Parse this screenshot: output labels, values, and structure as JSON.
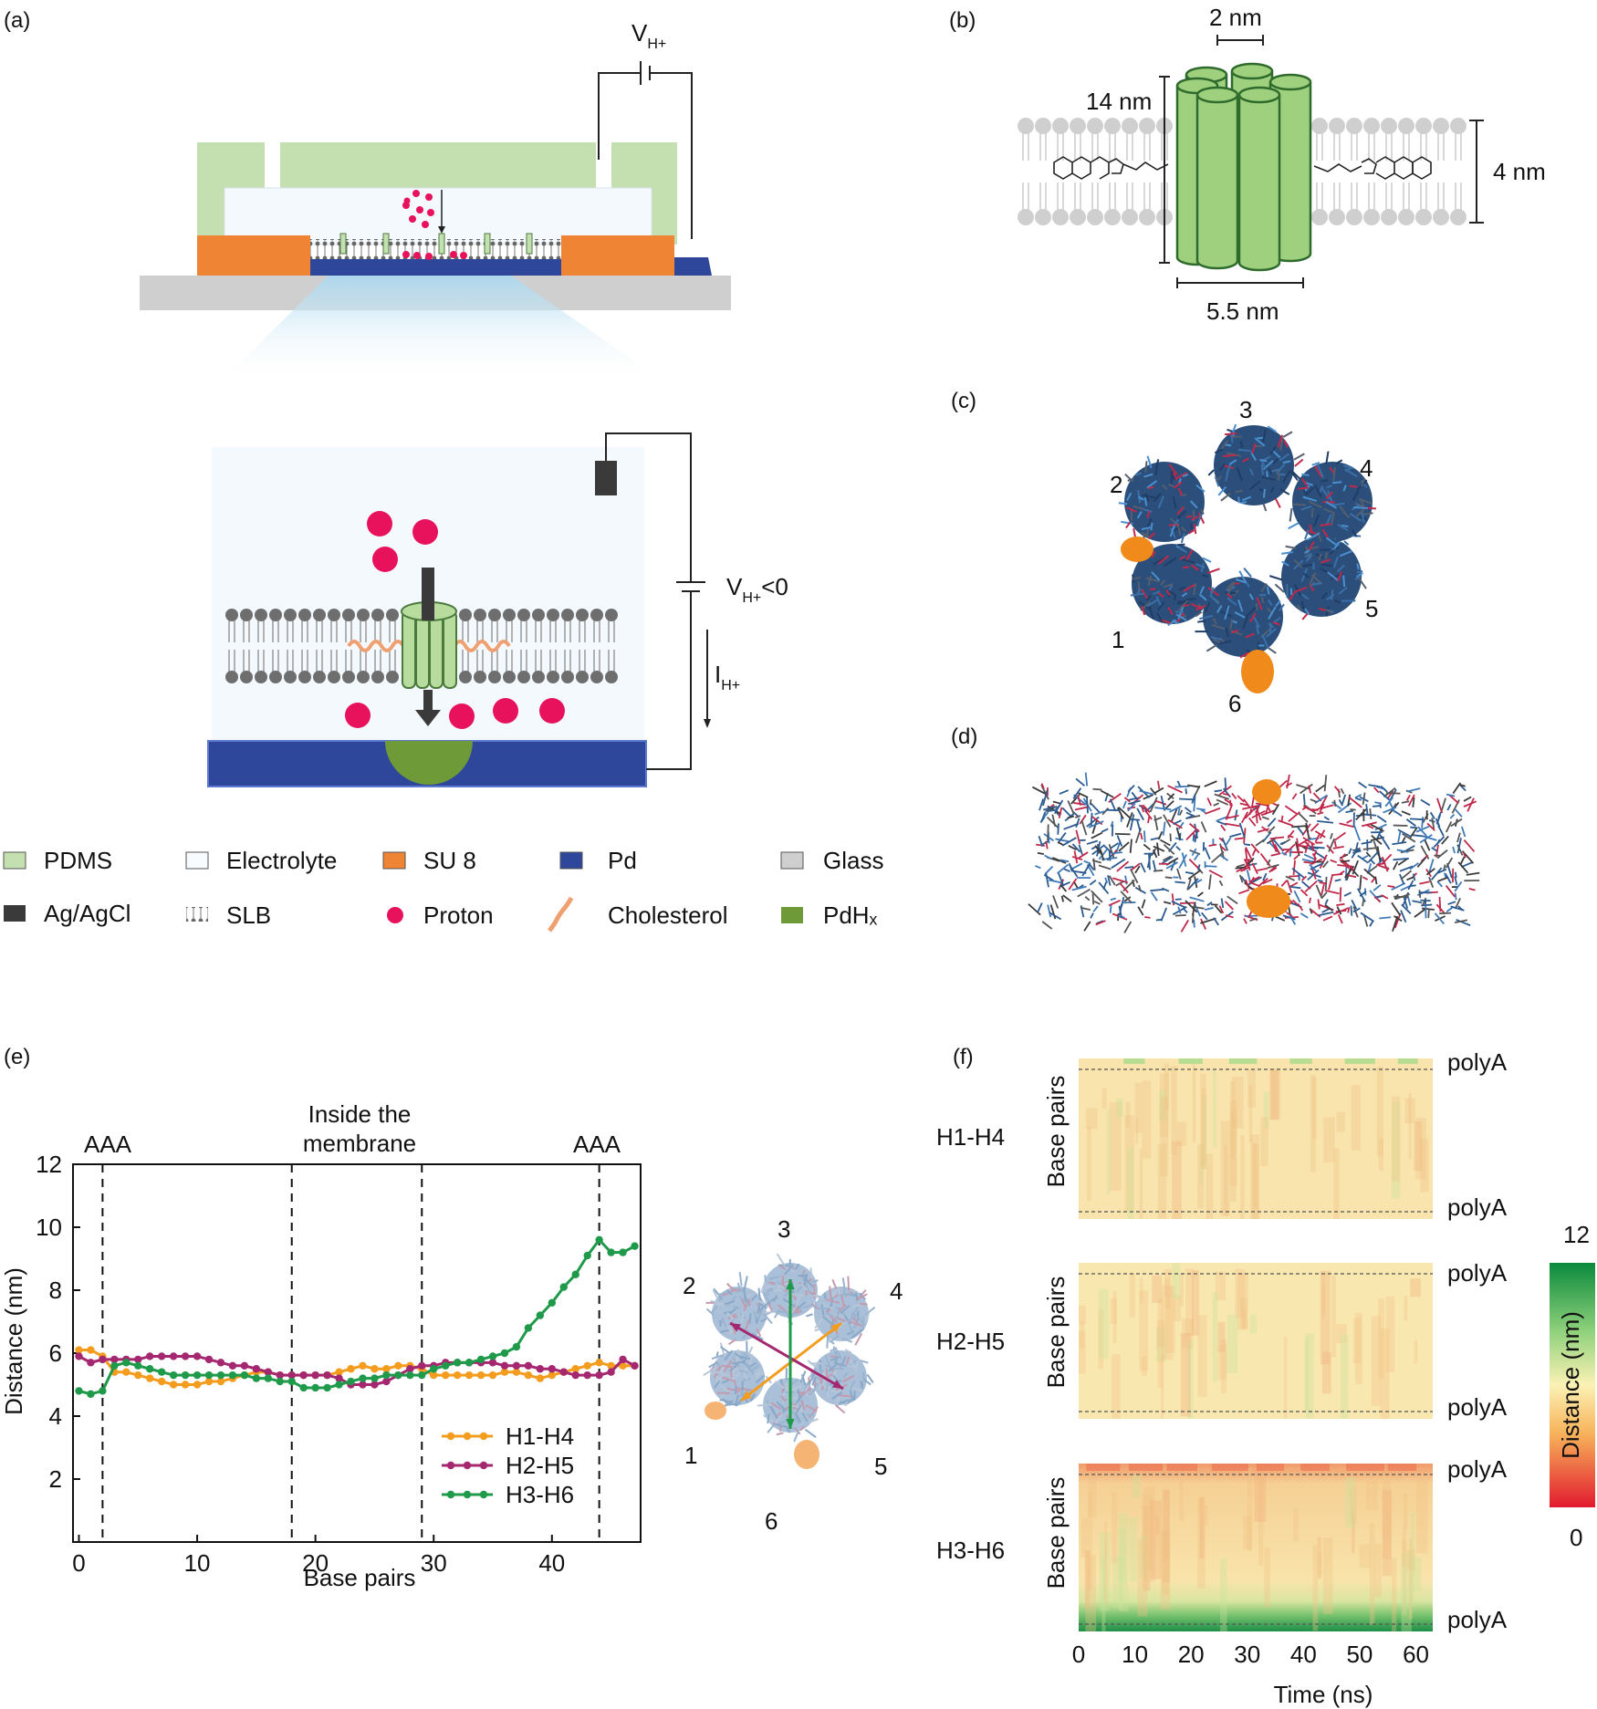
{
  "panels": {
    "a": "(a)",
    "b": "(b)",
    "c": "(c)",
    "d": "(d)",
    "e": "(e)",
    "f": "(f)"
  },
  "panel_a": {
    "voltage_label": "V",
    "voltage_sub": "H+",
    "voltage_neg_label": "V",
    "voltage_neg_sub": "H+",
    "voltage_neg_suffix": "<0",
    "current_label": "I",
    "current_sub": "H+"
  },
  "panel_b": {
    "width_top": "2 nm",
    "height_left": "14 nm",
    "height_right": "4 nm",
    "width_bottom": "5.5 nm"
  },
  "panel_c": {
    "helix_labels": [
      "1",
      "2",
      "3",
      "4",
      "5",
      "6"
    ]
  },
  "legend": {
    "items": [
      {
        "label": "PDMS",
        "color": "#c5e0b0"
      },
      {
        "label": "Electrolyte",
        "color": "#f7fbfe"
      },
      {
        "label": "SU 8",
        "color": "#ee8434"
      },
      {
        "label": "Pd",
        "color": "#2f479b"
      },
      {
        "label": "Glass",
        "color": "#cfcfcf"
      },
      {
        "label": "Ag/AgCl",
        "color": "#3a3a3a"
      },
      {
        "label": "SLB",
        "color": "#ffffff"
      },
      {
        "label": "Proton",
        "color": "#e8115b"
      },
      {
        "label": "Cholesterol",
        "color": "#f0a070"
      },
      {
        "label": "PdHₓ",
        "color": "#6e9a37"
      }
    ]
  },
  "panel_e": {
    "region_labels": {
      "left": "AAA",
      "middle_line1": "Inside the",
      "middle_line2": "membrane",
      "right": "AAA"
    },
    "inset_labels": [
      "1",
      "2",
      "3",
      "4",
      "5",
      "6"
    ]
  },
  "chart_data": [
    {
      "type": "line",
      "title": "",
      "xlabel": "Base pairs",
      "ylabel": "Distance (nm)",
      "xlim": [
        -0.5,
        47.5
      ],
      "ylim": [
        0,
        12
      ],
      "xticks": [
        0,
        10,
        20,
        30,
        40
      ],
      "yticks": [
        2,
        4,
        6,
        8,
        10,
        12
      ],
      "vlines": [
        2,
        18,
        29,
        44
      ],
      "x": [
        0,
        1,
        2,
        3,
        4,
        5,
        6,
        7,
        8,
        9,
        10,
        11,
        12,
        13,
        14,
        15,
        16,
        17,
        18,
        19,
        20,
        21,
        22,
        23,
        24,
        25,
        26,
        27,
        28,
        29,
        30,
        31,
        32,
        33,
        34,
        35,
        36,
        37,
        38,
        39,
        40,
        41,
        42,
        43,
        44,
        45,
        46,
        47
      ],
      "series": [
        {
          "name": "H1-H4",
          "color": "#f39c1e",
          "values": [
            6.1,
            6.1,
            5.9,
            5.4,
            5.4,
            5.3,
            5.2,
            5.1,
            5.0,
            5.0,
            5.0,
            5.1,
            5.1,
            5.2,
            5.3,
            5.4,
            5.4,
            5.3,
            5.3,
            5.3,
            5.3,
            5.3,
            5.4,
            5.5,
            5.6,
            5.5,
            5.5,
            5.6,
            5.6,
            5.5,
            5.3,
            5.3,
            5.3,
            5.3,
            5.3,
            5.3,
            5.4,
            5.4,
            5.3,
            5.2,
            5.3,
            5.4,
            5.5,
            5.6,
            5.7,
            5.6,
            5.6,
            5.6
          ]
        },
        {
          "name": "H2-H5",
          "color": "#a4276f",
          "values": [
            5.9,
            5.7,
            5.8,
            5.8,
            5.8,
            5.8,
            5.9,
            5.9,
            5.9,
            5.9,
            5.9,
            5.8,
            5.7,
            5.6,
            5.6,
            5.5,
            5.4,
            5.3,
            5.3,
            5.3,
            5.3,
            5.3,
            5.2,
            5.0,
            5.0,
            5.0,
            5.1,
            5.3,
            5.5,
            5.6,
            5.6,
            5.7,
            5.7,
            5.7,
            5.7,
            5.7,
            5.6,
            5.6,
            5.6,
            5.5,
            5.5,
            5.4,
            5.3,
            5.3,
            5.3,
            5.4,
            5.8,
            5.6
          ]
        },
        {
          "name": "H3-H6",
          "color": "#1e9a4a",
          "values": [
            4.8,
            4.7,
            4.8,
            5.6,
            5.7,
            5.6,
            5.5,
            5.4,
            5.3,
            5.3,
            5.3,
            5.3,
            5.3,
            5.3,
            5.3,
            5.2,
            5.2,
            5.1,
            5.1,
            4.9,
            4.9,
            4.9,
            5.0,
            5.1,
            5.2,
            5.2,
            5.3,
            5.3,
            5.3,
            5.3,
            5.5,
            5.6,
            5.7,
            5.7,
            5.8,
            5.9,
            6.0,
            6.2,
            6.8,
            7.2,
            7.6,
            8.1,
            8.5,
            9.1,
            9.6,
            9.2,
            9.2,
            9.4
          ]
        }
      ]
    },
    {
      "type": "heatmap",
      "title": "",
      "xlabel": "Time (ns)",
      "ylabel": "Base pairs",
      "xlim": [
        0,
        63
      ],
      "xticks": [
        0,
        10,
        20,
        30,
        40,
        50,
        60
      ],
      "rows": [
        "H1-H4",
        "H2-H5",
        "H3-H6"
      ],
      "row_bound_labels": [
        "polyA",
        "polyA"
      ],
      "colorbar": {
        "label": "Distance (nm)",
        "min": 0,
        "max": 12,
        "min_label": "0",
        "max_label": "12",
        "colors": [
          "#e21a2e",
          "#f7b25a",
          "#fbf2b4",
          "#8fd17b",
          "#0a8a3c"
        ]
      }
    }
  ]
}
